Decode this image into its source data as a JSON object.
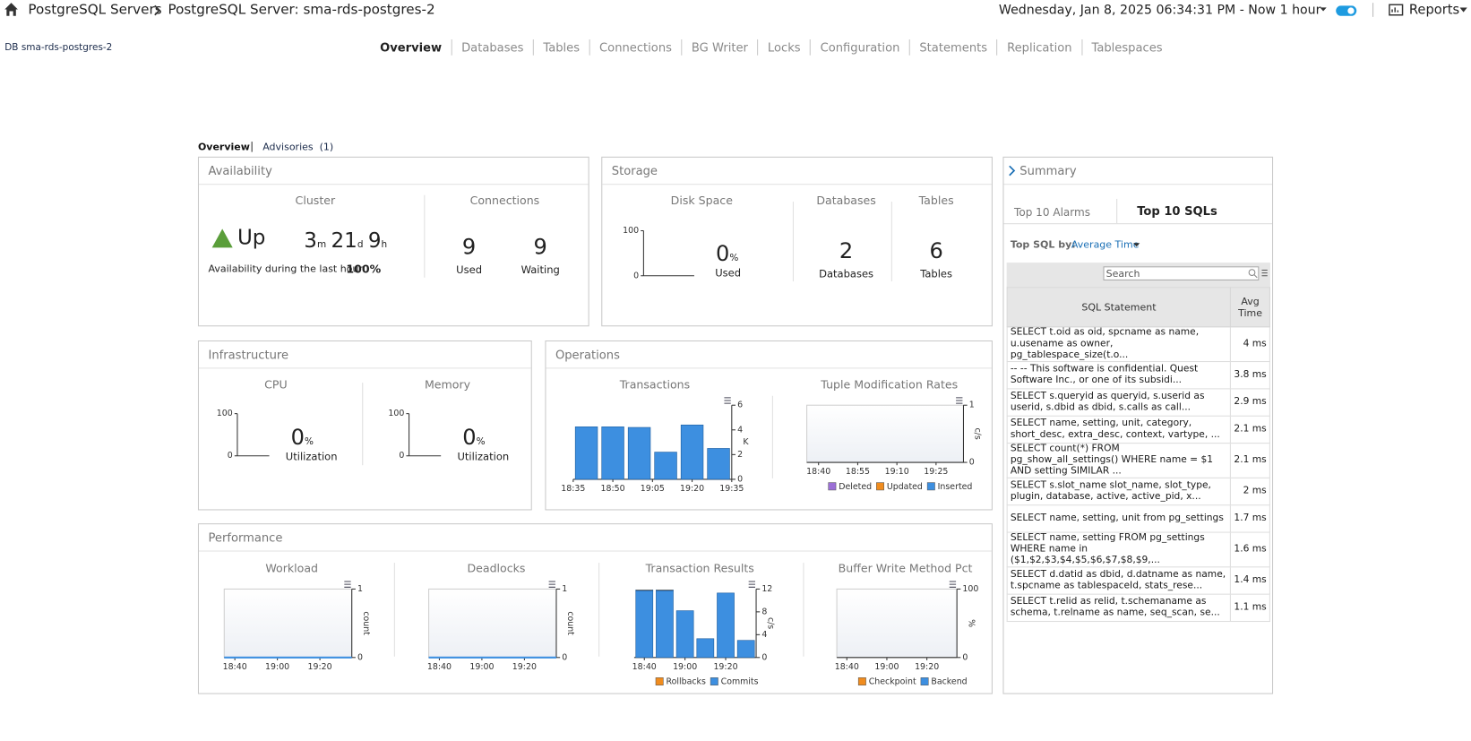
{
  "header": {
    "breadcrumb": [
      "PostgreSQL Servers",
      "PostgreSQL Server: sma-rds-postgres-2"
    ],
    "time_range": "Wednesday, Jan 8, 2025 06:34:31 PM - Now 1 hour",
    "reports": "Reports"
  },
  "db_label": "DB sma-rds-postgres-2",
  "tabs": [
    "Overview",
    "Databases",
    "Tables",
    "Connections",
    "BG Writer",
    "Locks",
    "Configuration",
    "Statements",
    "Replication",
    "Tablespaces"
  ],
  "subtabs": [
    "Overview",
    "Advisories  (1)"
  ],
  "availability": {
    "title": "Availability",
    "cluster_label": "Cluster",
    "status": "Up",
    "uptime": [
      {
        "value": "3",
        "unit": "m"
      },
      {
        "value": "21",
        "unit": "d"
      },
      {
        "value": "9",
        "unit": "h"
      }
    ],
    "availability_text": "Availability during the last hour",
    "availability_value": "100%",
    "connections_label": "Connections",
    "used": 9,
    "used_label": "Used",
    "waiting": 9,
    "waiting_label": "Waiting"
  },
  "storage": {
    "title": "Storage",
    "disk_used": 0,
    "unit": "%",
    "disk_used_label": "Used",
    "databases_label": "Databases",
    "databases": 2,
    "databases_caption": "Databases",
    "tables_label": "Tables",
    "tables": 6,
    "tables_caption": "Tables"
  },
  "infrastructure": {
    "title": "Infrastructure",
    "cpu": 0,
    "memory": 0,
    "unit": "%",
    "utilization": "Utilization"
  },
  "operations": {
    "title": "Operations"
  },
  "performance": {
    "title": "Performance"
  },
  "summary": {
    "title": "Summary",
    "tabs": [
      "Top 10 Alarms",
      "Top 10 SQLs"
    ],
    "top_by_label": "Top SQL by:",
    "top_by": "Average Time",
    "search_placeholder": "Search",
    "table": {
      "headers": [
        "SQL Statement",
        "Avg Time"
      ],
      "rows": [
        [
          "SELECT t.oid as oid, spcname as name, u.usename as owner, pg_tablespace_size(t.o...",
          "4 ms"
        ],
        [
          "-- -- This software is confidential. Quest Software Inc., or one of its subsidi...",
          "3.8 ms"
        ],
        [
          "SELECT s.queryid as queryid, s.userid as userid, s.dbid as dbid, s.calls as call...",
          "2.9 ms"
        ],
        [
          "SELECT name, setting, unit, category, short_desc, extra_desc, context, vartype, ...",
          "2.1 ms"
        ],
        [
          "SELECT count(*) FROM pg_show_all_settings() WHERE name = $1 AND setting SIMILAR ...",
          "2.1 ms"
        ],
        [
          "SELECT s.slot_name slot_name, slot_type, plugin, database, active, active_pid, x...",
          "2 ms"
        ],
        [
          "SELECT name, setting, unit from pg_settings",
          "1.7 ms"
        ],
        [
          "SELECT name, setting FROM pg_settings WHERE name in ($1,$2,$3,$4,$5,$6,$7,$8,$9,...",
          "1.6 ms"
        ],
        [
          "SELECT d.datid as dbid, d.datname as name, t.spcname as tablespaceId, stats_rese...",
          "1.4 ms"
        ],
        [
          "SELECT t.relid as relid, t.schemaname as schema, t.relname as name, seq_scan, se...",
          "1.1 ms"
        ]
      ]
    }
  },
  "chart_data": [
    {
      "type": "line",
      "title": "Disk Space",
      "ylim": [
        0,
        100
      ],
      "yticks": [
        0,
        100
      ]
    },
    {
      "type": "line",
      "title": "CPU",
      "ylim": [
        0,
        100
      ],
      "yticks": [
        0,
        100
      ]
    },
    {
      "type": "line",
      "title": "Memory",
      "ylim": [
        0,
        100
      ],
      "yticks": [
        0,
        100
      ]
    },
    {
      "type": "bar",
      "title": "Transactions",
      "xticks": [
        "18:35",
        "18:50",
        "19:05",
        "19:20",
        "19:35"
      ],
      "ylim": [
        0,
        6
      ],
      "yticks": [
        0,
        2,
        4,
        6
      ],
      "y_label": "K",
      "color": "#3d8fe0",
      "values": [
        4.25,
        4.25,
        4.2,
        2.2,
        4.4,
        2.5
      ]
    },
    {
      "type": "line",
      "title": "Tuple Modification Rates",
      "xticks": [
        "18:40",
        "18:55",
        "19:10",
        "19:25"
      ],
      "ylim": [
        0,
        1
      ],
      "yticks": [
        0,
        1
      ],
      "y_label": "c/s",
      "series": [
        {
          "name": "Deleted",
          "color": "#9b6fd6",
          "values": []
        },
        {
          "name": "Updated",
          "color": "#f08c1e",
          "values": []
        },
        {
          "name": "Inserted",
          "color": "#3d8fe0",
          "values": []
        }
      ]
    },
    {
      "type": "line",
      "title": "Workload",
      "xticks": [
        "18:40",
        "19:00",
        "19:20"
      ],
      "ylim": [
        0,
        1
      ],
      "yticks": [
        0,
        1
      ],
      "y_label": "count",
      "color": "#3d8fe0",
      "values": [
        0,
        0,
        0,
        0,
        0,
        0,
        0
      ]
    },
    {
      "type": "line",
      "title": "Deadlocks",
      "xticks": [
        "18:40",
        "19:00",
        "19:20"
      ],
      "ylim": [
        0,
        1
      ],
      "yticks": [
        0,
        1
      ],
      "y_label": "count",
      "color": "#3d8fe0",
      "values": [
        0,
        0,
        0,
        0,
        0,
        0,
        0
      ]
    },
    {
      "type": "bar",
      "stacked": true,
      "title": "Transaction Results",
      "xticks": [
        "18:40",
        "19:00",
        "19:20"
      ],
      "ylim": [
        0,
        12
      ],
      "yticks": [
        0,
        4,
        8,
        12
      ],
      "y_label": "c/s",
      "series": [
        {
          "name": "Rollbacks",
          "color": "#f08c1e",
          "values": [
            0.15,
            0.15,
            0,
            0,
            0,
            0
          ]
        },
        {
          "name": "Commits",
          "color": "#3d8fe0",
          "values": [
            11.7,
            11.7,
            8.2,
            3.3,
            11.3,
            3.0
          ]
        }
      ]
    },
    {
      "type": "line",
      "title": "Buffer Write Method Pct",
      "xticks": [
        "18:40",
        "19:00",
        "19:20"
      ],
      "ylim": [
        0,
        100
      ],
      "yticks": [
        0,
        100
      ],
      "y_label": "%",
      "series": [
        {
          "name": "Checkpoint",
          "color": "#f08c1e",
          "values": []
        },
        {
          "name": "Backend",
          "color": "#3d8fe0",
          "values": []
        }
      ]
    }
  ]
}
